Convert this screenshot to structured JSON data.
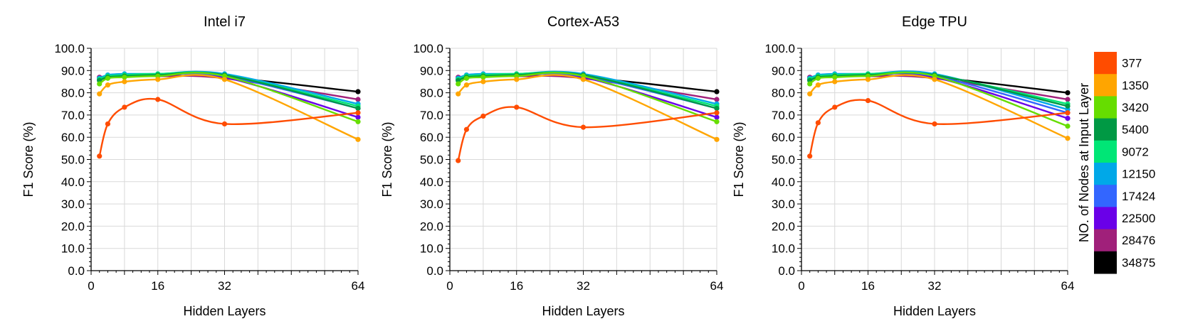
{
  "chart_data": {
    "type": "line",
    "shared": {
      "xlabel": "Hidden Layers",
      "ylabel": "F1 Score (%)",
      "ylim": [
        0,
        100
      ],
      "yticks": [
        "0.0",
        "10.0",
        "20.0",
        "30.0",
        "40.0",
        "50.0",
        "60.0",
        "70.0",
        "80.0",
        "90.0",
        "100.0"
      ],
      "xlim": [
        0,
        64
      ],
      "xticks": [
        "0",
        "16",
        "32",
        "64"
      ],
      "x": [
        2,
        4,
        8,
        16,
        32,
        64
      ],
      "grid": true,
      "legend": {
        "title": "NO. of Nodes at Input Layer",
        "position": "right",
        "entries": [
          {
            "label": "377",
            "color": "#ff4c00"
          },
          {
            "label": "1350",
            "color": "#ffa500"
          },
          {
            "label": "3420",
            "color": "#66dd00"
          },
          {
            "label": "5400",
            "color": "#009944"
          },
          {
            "label": "9072",
            "color": "#00e676"
          },
          {
            "label": "12150",
            "color": "#00a8e8"
          },
          {
            "label": "17424",
            "color": "#3366ff"
          },
          {
            "label": "22500",
            "color": "#6a00e8"
          },
          {
            "label": "28476",
            "color": "#a0207a"
          },
          {
            "label": "34875",
            "color": "#000000"
          }
        ]
      }
    },
    "panels": [
      {
        "title": "Intel i7",
        "series": [
          {
            "name": "377",
            "values": [
              51.5,
              66.0,
              73.5,
              77.0,
              66.0,
              71.0
            ]
          },
          {
            "name": "1350",
            "values": [
              79.5,
              83.5,
              85.0,
              86.0,
              86.0,
              59.0
            ]
          },
          {
            "name": "3420",
            "values": [
              84.0,
              86.5,
              87.0,
              87.5,
              87.5,
              67.0
            ]
          },
          {
            "name": "5400",
            "values": [
              85.5,
              87.0,
              87.5,
              88.0,
              88.0,
              73.0
            ]
          },
          {
            "name": "9072",
            "values": [
              86.0,
              87.5,
              88.0,
              88.5,
              88.0,
              74.0
            ]
          },
          {
            "name": "12150",
            "values": [
              86.5,
              88.0,
              88.5,
              88.5,
              88.5,
              75.0
            ]
          },
          {
            "name": "17424",
            "values": [
              86.5,
              87.5,
              88.0,
              88.0,
              87.5,
              73.0
            ]
          },
          {
            "name": "22500",
            "values": [
              86.0,
              87.5,
              88.0,
              88.0,
              87.0,
              69.0
            ]
          },
          {
            "name": "28476",
            "values": [
              87.0,
              87.5,
              87.5,
              87.5,
              86.5,
              77.0
            ]
          },
          {
            "name": "34875",
            "values": [
              86.0,
              87.0,
              87.5,
              87.5,
              87.0,
              80.5
            ]
          }
        ]
      },
      {
        "title": "Cortex-A53",
        "series": [
          {
            "name": "377",
            "values": [
              49.5,
              63.5,
              69.5,
              73.5,
              64.5,
              71.0
            ]
          },
          {
            "name": "1350",
            "values": [
              79.5,
              83.5,
              85.0,
              86.0,
              86.0,
              59.0
            ]
          },
          {
            "name": "3420",
            "values": [
              84.0,
              86.5,
              87.0,
              87.5,
              87.5,
              67.0
            ]
          },
          {
            "name": "5400",
            "values": [
              85.5,
              87.0,
              87.5,
              88.0,
              88.0,
              73.0
            ]
          },
          {
            "name": "9072",
            "values": [
              86.0,
              87.5,
              88.0,
              88.5,
              88.0,
              74.0
            ]
          },
          {
            "name": "12150",
            "values": [
              86.5,
              88.0,
              88.5,
              88.5,
              88.5,
              75.0
            ]
          },
          {
            "name": "17424",
            "values": [
              86.5,
              87.5,
              88.0,
              88.0,
              87.5,
              73.0
            ]
          },
          {
            "name": "22500",
            "values": [
              86.0,
              87.5,
              88.0,
              88.0,
              87.0,
              69.0
            ]
          },
          {
            "name": "28476",
            "values": [
              87.0,
              87.5,
              87.5,
              87.5,
              86.5,
              77.0
            ]
          },
          {
            "name": "34875",
            "values": [
              86.0,
              87.0,
              87.5,
              87.5,
              87.0,
              80.5
            ]
          }
        ]
      },
      {
        "title": "Edge TPU",
        "series": [
          {
            "name": "377",
            "values": [
              51.5,
              66.5,
              73.5,
              76.5,
              66.0,
              71.0
            ]
          },
          {
            "name": "1350",
            "values": [
              79.5,
              83.5,
              85.0,
              86.0,
              86.0,
              59.5
            ]
          },
          {
            "name": "3420",
            "values": [
              84.0,
              86.5,
              87.0,
              87.5,
              87.5,
              65.0
            ]
          },
          {
            "name": "5400",
            "values": [
              85.5,
              87.0,
              87.5,
              88.0,
              88.0,
              74.0
            ]
          },
          {
            "name": "9072",
            "values": [
              86.0,
              87.5,
              88.0,
              88.5,
              88.0,
              75.0
            ]
          },
          {
            "name": "12150",
            "values": [
              86.5,
              88.0,
              88.5,
              88.5,
              88.5,
              72.5
            ]
          },
          {
            "name": "17424",
            "values": [
              86.5,
              87.5,
              88.0,
              88.0,
              87.5,
              71.0
            ]
          },
          {
            "name": "22500",
            "values": [
              86.0,
              87.5,
              88.0,
              88.0,
              87.0,
              68.5
            ]
          },
          {
            "name": "28476",
            "values": [
              87.0,
              87.5,
              87.5,
              87.5,
              86.5,
              77.0
            ]
          },
          {
            "name": "34875",
            "values": [
              86.0,
              87.0,
              87.5,
              87.5,
              87.0,
              80.0
            ]
          }
        ]
      }
    ]
  }
}
